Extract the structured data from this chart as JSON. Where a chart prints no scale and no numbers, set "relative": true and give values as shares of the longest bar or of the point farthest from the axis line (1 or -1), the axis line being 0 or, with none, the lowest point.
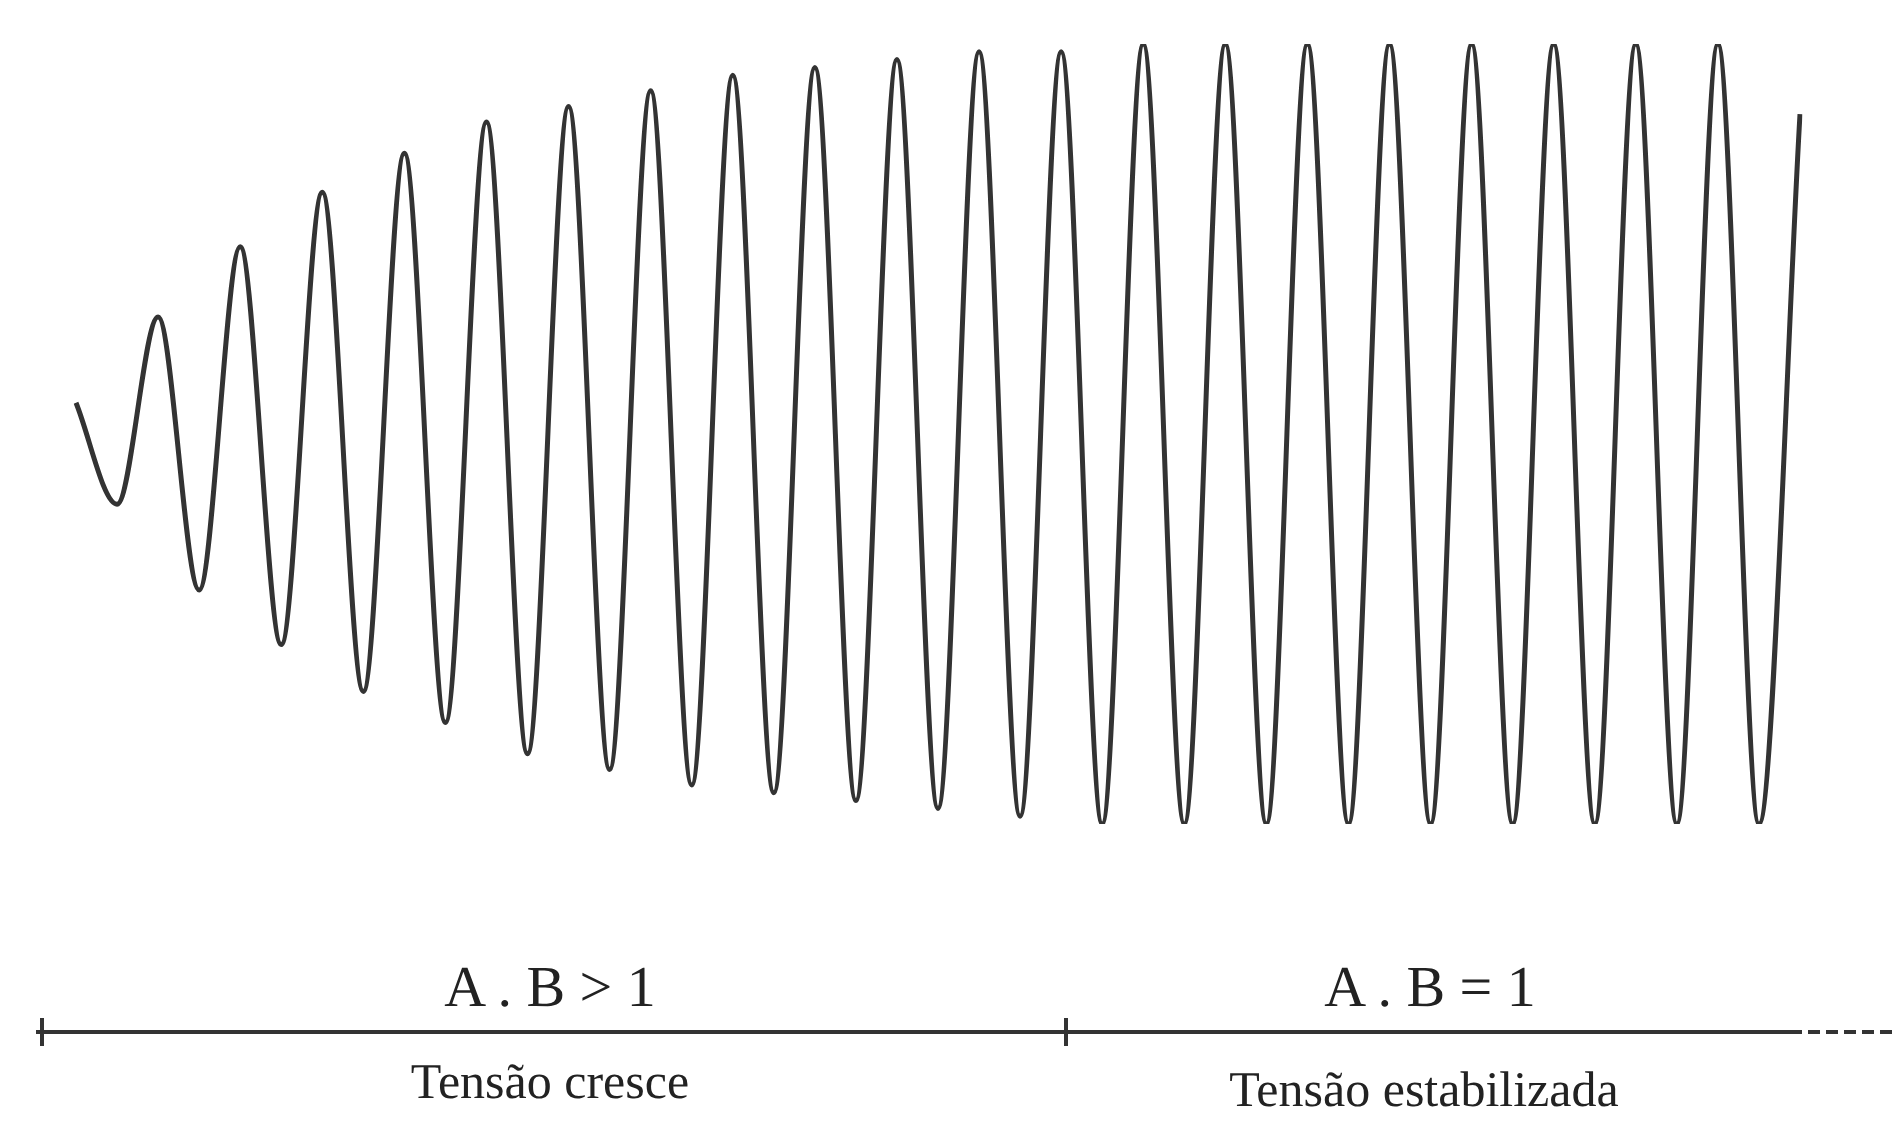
{
  "chart_data": {
    "type": "line",
    "relative": true,
    "color": "#333333",
    "categories": [
      null,
      null,
      null,
      null,
      null,
      null,
      null,
      null,
      null,
      null,
      null,
      null,
      null,
      null,
      null,
      null,
      null,
      null,
      null,
      null,
      null,
      null,
      null,
      null,
      null,
      null,
      null,
      null,
      null,
      null,
      null,
      null,
      null,
      null,
      null,
      null,
      null,
      null,
      null,
      null,
      null,
      null,
      null
    ],
    "values": [
      0.54,
      0.41,
      0.65,
      0.3,
      0.74,
      0.23,
      0.81,
      0.17,
      0.86,
      0.13,
      0.9,
      0.09,
      0.92,
      0.07,
      0.94,
      0.05,
      0.96,
      0.04,
      0.97,
      0.03,
      0.98,
      0.02,
      0.99,
      0.01,
      0.99,
      0,
      1,
      0,
      1,
      0,
      1,
      0,
      1,
      0,
      1,
      0,
      1,
      0,
      1,
      0,
      1,
      0,
      0.91
    ],
    "annotations": [
      "A . B > 1",
      "A . B = 1",
      "Tensão cresce",
      "Tensão estabilizada"
    ]
  }
}
